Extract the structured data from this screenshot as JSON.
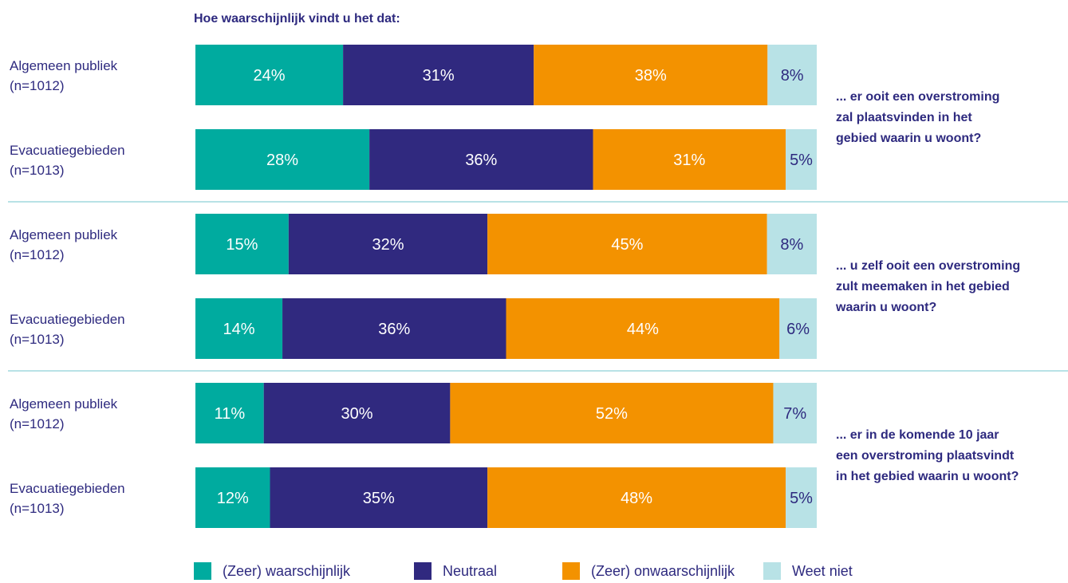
{
  "chart_data": {
    "type": "bar",
    "orientation": "horizontal",
    "stacked": true,
    "title": "Hoe waarschijnlijk vindt u het dat:",
    "value_suffix": "%",
    "legend_position": "bottom",
    "series": [
      {
        "name": "(Zeer) waarschijnlijk",
        "color": "#00ab9f"
      },
      {
        "name": "Neutraal",
        "color": "#30297f"
      },
      {
        "name": "(Zeer) onwaarschijnlijk",
        "color": "#f39200"
      },
      {
        "name": "Weet niet",
        "color": "#b8e2e6"
      }
    ],
    "groups": [
      {
        "question": "... er ooit een overstroming zal plaatsvinden in het gebied waarin u woont?",
        "question_lines": [
          "... er ooit een overstroming",
          "zal plaatsvinden in het",
          "gebied waarin u woont?"
        ],
        "rows": [
          {
            "label_lines": [
              "Algemeen publiek",
              "(n=1012)"
            ],
            "values": [
              24,
              31,
              38,
              8
            ]
          },
          {
            "label_lines": [
              "Evacuatiegebieden",
              "(n=1013)"
            ],
            "values": [
              28,
              36,
              31,
              5
            ]
          }
        ]
      },
      {
        "question": "... u zelf ooit een overstroming zult meemaken in het gebied waarin u woont?",
        "question_lines": [
          "... u zelf ooit een overstroming",
          "zult meemaken in het gebied",
          "waarin u woont?"
        ],
        "rows": [
          {
            "label_lines": [
              "Algemeen publiek",
              "(n=1012)"
            ],
            "values": [
              15,
              32,
              45,
              8
            ]
          },
          {
            "label_lines": [
              "Evacuatiegebieden",
              "(n=1013)"
            ],
            "values": [
              14,
              36,
              44,
              6
            ]
          }
        ]
      },
      {
        "question": "... er in de komende 10 jaar een overstroming plaatsvindt in het gebied waarin u woont?",
        "question_lines": [
          "... er in de komende 10 jaar",
          "een overstroming plaatsvindt",
          "in het gebied waarin u woont?"
        ],
        "rows": [
          {
            "label_lines": [
              "Algemeen publiek",
              "(n=1012)"
            ],
            "values": [
              11,
              30,
              52,
              7
            ]
          },
          {
            "label_lines": [
              "Evacuatiegebieden",
              "(n=1013)"
            ],
            "values": [
              12,
              35,
              48,
              5
            ]
          }
        ]
      }
    ]
  }
}
